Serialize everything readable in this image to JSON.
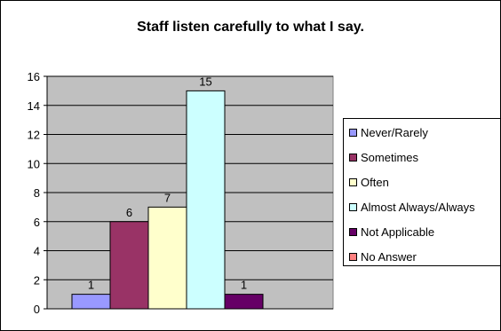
{
  "chart_data": {
    "type": "bar",
    "title": "Staff listen carefully to what I say.",
    "categories": [
      "Never/Rarely",
      "Sometimes",
      "Often",
      "Almost Always/Always",
      "Not Applicable",
      "No Answer"
    ],
    "values": [
      1,
      6,
      7,
      15,
      1,
      0
    ],
    "data_labels": [
      "1",
      "6",
      "7",
      "15",
      "1",
      ""
    ],
    "colors": [
      "#9999ff",
      "#993366",
      "#ffffcc",
      "#ccffff",
      "#660066",
      "#ff8080"
    ],
    "ylim": [
      0,
      16
    ],
    "yticks": [
      0,
      2,
      4,
      6,
      8,
      10,
      12,
      14,
      16
    ],
    "xlabel": "",
    "ylabel": "",
    "grid": true,
    "plot_background": "#c0c0c0",
    "legend_position": "right"
  }
}
